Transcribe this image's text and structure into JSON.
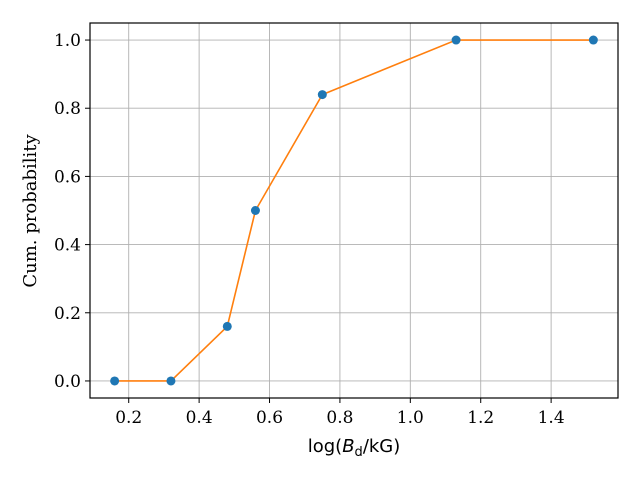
{
  "chart_data": {
    "type": "line",
    "title": "",
    "xlabel_parts": {
      "pre": "log(",
      "sym": "B",
      "sub": "d",
      "post": "/kG)"
    },
    "ylabel": "Cum. probability",
    "xlim": [
      0.09,
      1.59
    ],
    "ylim": [
      -0.05,
      1.05
    ],
    "xticks": [
      0.2,
      0.4,
      0.6,
      0.8,
      1.0,
      1.2,
      1.4
    ],
    "xtick_labels": [
      "0.2",
      "0.4",
      "0.6",
      "0.8",
      "1.0",
      "1.2",
      "1.4"
    ],
    "yticks": [
      0.0,
      0.2,
      0.4,
      0.6,
      0.8,
      1.0
    ],
    "ytick_labels": [
      "0.0",
      "0.2",
      "0.4",
      "0.6",
      "0.8",
      "1.0"
    ],
    "grid": true,
    "series": [
      {
        "x": [
          0.16,
          0.32,
          0.48,
          0.56,
          0.75,
          1.13,
          1.52
        ],
        "y": [
          0.0,
          0.0,
          0.16,
          0.5,
          0.84,
          1.0,
          1.0
        ],
        "marker_color": "#1f77b4",
        "line_color": "#ff7f0e"
      }
    ]
  }
}
